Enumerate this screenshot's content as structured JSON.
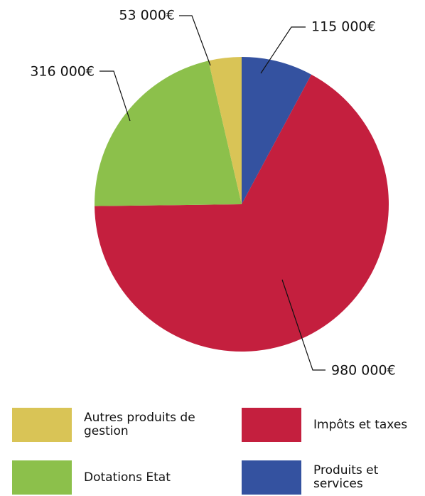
{
  "chart_data": {
    "type": "pie",
    "categories": [
      "Produits et services",
      "Impôts et taxes",
      "Dotations Etat",
      "Autres produits de gestion"
    ],
    "values": [
      115000,
      980000,
      316000,
      53000
    ],
    "value_labels": [
      "115 000€",
      "980 000€",
      "316 000€",
      "53 000€"
    ],
    "colors": [
      "#3452a0",
      "#c41f3e",
      "#8cc04b",
      "#d9c456"
    ]
  }
}
